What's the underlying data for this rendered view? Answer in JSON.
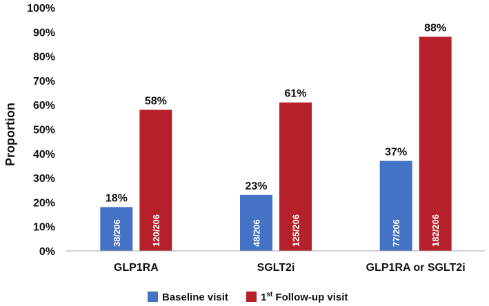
{
  "colors": {
    "baseline": "#4472c4",
    "followup": "#b5202a",
    "axis": "#a6a6a6",
    "grid": "#d9d9d9"
  },
  "chart_data": {
    "type": "bar",
    "title": "",
    "xlabel": "",
    "ylabel": "Proportion",
    "ylim": [
      0,
      100
    ],
    "yticks": [
      "0%",
      "10%",
      "20%",
      "30%",
      "40%",
      "50%",
      "60%",
      "70%",
      "80%",
      "90%",
      "100%"
    ],
    "grid": false,
    "legend_position": "bottom",
    "categories": [
      "GLP1RA",
      "SGLT2i",
      "GLP1RA or SGLT2i"
    ],
    "series": [
      {
        "name": "Baseline visit",
        "values": [
          18,
          23,
          37
        ],
        "value_labels": [
          "18%",
          "23%",
          "37%"
        ],
        "bar_labels": [
          "38/206",
          "48/206",
          "77/206"
        ]
      },
      {
        "name": "1st Follow-up visit",
        "name_base": "1",
        "name_sup": "st",
        "name_rest": " Follow-up visit",
        "values": [
          58,
          61,
          88
        ],
        "value_labels": [
          "58%",
          "61%",
          "88%"
        ],
        "bar_labels": [
          "120/206",
          "125/206",
          "182/206"
        ]
      }
    ]
  }
}
